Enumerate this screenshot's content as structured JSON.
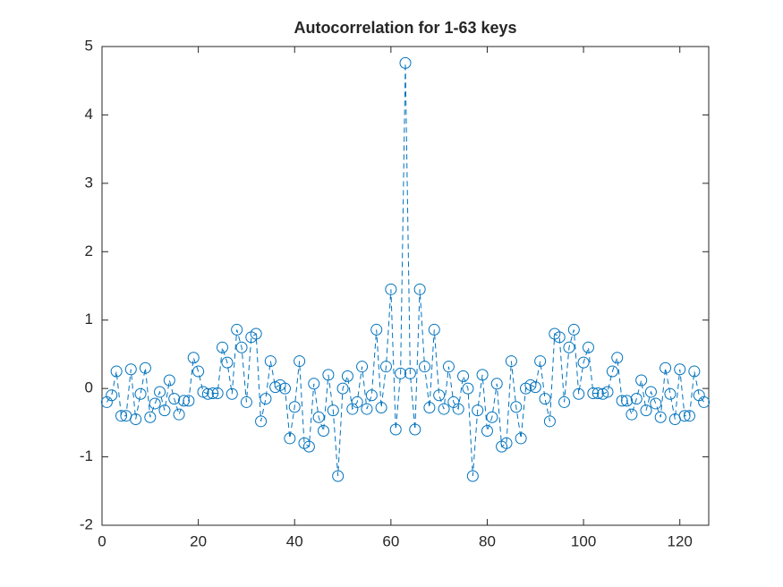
{
  "chart_data": {
    "type": "line",
    "title": "Autocorrelation for 1-63 keys",
    "x": [
      1,
      2,
      3,
      4,
      5,
      6,
      7,
      8,
      9,
      10,
      11,
      12,
      13,
      14,
      15,
      16,
      17,
      18,
      19,
      20,
      21,
      22,
      23,
      24,
      25,
      26,
      27,
      28,
      29,
      30,
      31,
      32,
      33,
      34,
      35,
      36,
      37,
      38,
      39,
      40,
      41,
      42,
      43,
      44,
      45,
      46,
      47,
      48,
      49,
      50,
      51,
      52,
      53,
      54,
      55,
      56,
      57,
      58,
      59,
      60,
      61,
      62,
      63,
      64,
      65,
      66,
      67,
      68,
      69,
      70,
      71,
      72,
      73,
      74,
      75,
      76,
      77,
      78,
      79,
      80,
      81,
      82,
      83,
      84,
      85,
      86,
      87,
      88,
      89,
      90,
      91,
      92,
      93,
      94,
      95,
      96,
      97,
      98,
      99,
      100,
      101,
      102,
      103,
      104,
      105,
      106,
      107,
      108,
      109,
      110,
      111,
      112,
      113,
      114,
      115,
      116,
      117,
      118,
      119,
      120,
      121,
      122,
      123,
      124,
      125
    ],
    "series": [
      {
        "color": "#0072BD",
        "values": [
          -0.2,
          -0.1,
          0.25,
          -0.4,
          -0.4,
          0.28,
          -0.45,
          -0.08,
          0.3,
          -0.42,
          -0.22,
          -0.05,
          -0.32,
          0.12,
          -0.15,
          -0.38,
          -0.18,
          -0.18,
          0.45,
          0.25,
          -0.05,
          -0.08,
          -0.07,
          -0.07,
          0.6,
          0.38,
          -0.08,
          0.86,
          0.6,
          -0.2,
          0.75,
          0.8,
          -0.48,
          -0.15,
          0.4,
          0.02,
          0.05,
          0.0,
          -0.73,
          -0.27,
          0.4,
          -0.8,
          -0.85,
          0.07,
          -0.42,
          -0.62,
          0.2,
          -0.32,
          -1.28,
          0.0,
          0.18,
          -0.3,
          -0.2,
          0.32,
          -0.3,
          -0.1,
          0.86,
          -0.28,
          0.32,
          1.45,
          -0.6,
          0.22,
          4.76,
          0.22,
          -0.6,
          1.45,
          0.32,
          -0.28,
          0.86,
          -0.1,
          -0.3,
          0.32,
          -0.2,
          -0.3,
          0.18,
          0.0,
          -1.28,
          -0.32,
          0.2,
          -0.62,
          -0.42,
          0.07,
          -0.85,
          -0.8,
          0.4,
          -0.27,
          -0.73,
          0.0,
          0.05,
          0.02,
          0.4,
          -0.15,
          -0.48,
          0.8,
          0.75,
          -0.2,
          0.6,
          0.86,
          -0.08,
          0.38,
          0.6,
          -0.07,
          -0.07,
          -0.08,
          -0.05,
          0.25,
          0.45,
          -0.18,
          -0.18,
          -0.38,
          -0.15,
          0.12,
          -0.32,
          -0.05,
          -0.22,
          -0.42,
          0.3,
          -0.08,
          -0.45,
          0.28,
          -0.4,
          -0.4,
          0.25,
          -0.1,
          -0.2
        ]
      }
    ],
    "xlim": [
      0,
      126
    ],
    "xticks": [
      0,
      20,
      40,
      60,
      80,
      100,
      120
    ],
    "ylim": [
      -2,
      5
    ],
    "yticks": [
      -2,
      -1,
      0,
      1,
      2,
      3,
      4,
      5
    ],
    "grid": false
  }
}
